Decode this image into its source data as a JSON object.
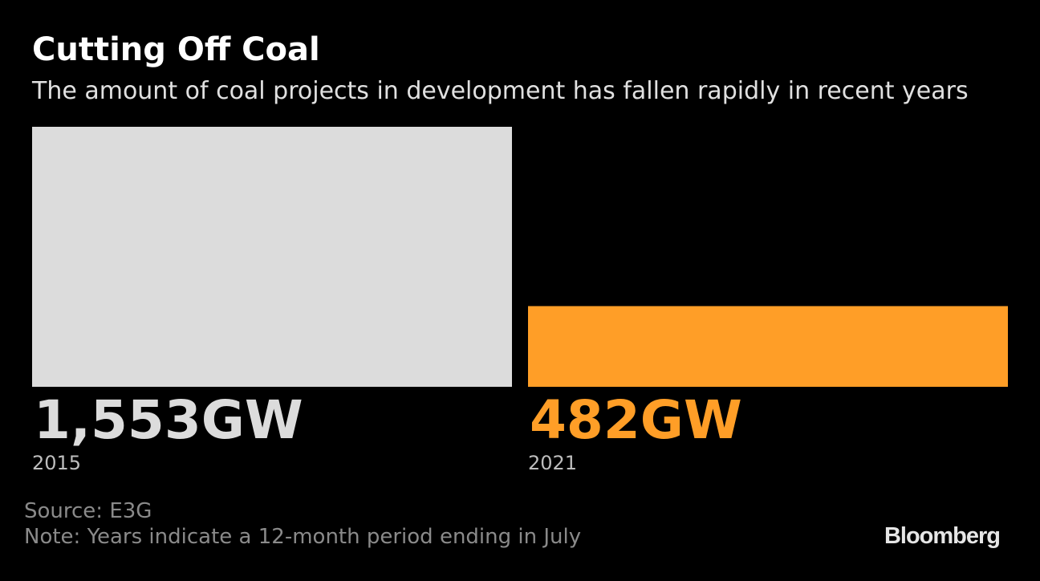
{
  "header": {
    "title": "Cutting Off Coal",
    "subtitle": "The amount of coal projects in development has fallen rapidly in recent years"
  },
  "chart_data": {
    "type": "bar",
    "categories": [
      "2015",
      "2021"
    ],
    "values": [
      1553,
      482
    ],
    "value_labels": [
      "1,553GW",
      "482GW"
    ],
    "colors": [
      "#dcdcdc",
      "#ff9e27"
    ],
    "title": "Cutting Off Coal",
    "subtitle": "The amount of coal projects in development has fallen rapidly in recent years",
    "xlabel": "",
    "ylabel": "",
    "ylim": [
      0,
      1553
    ],
    "grid": false,
    "legend": "none"
  },
  "footer": {
    "source": "Source: E3G",
    "note": "Note: Years indicate a 12-month period ending in July",
    "logo": "Bloomberg"
  }
}
